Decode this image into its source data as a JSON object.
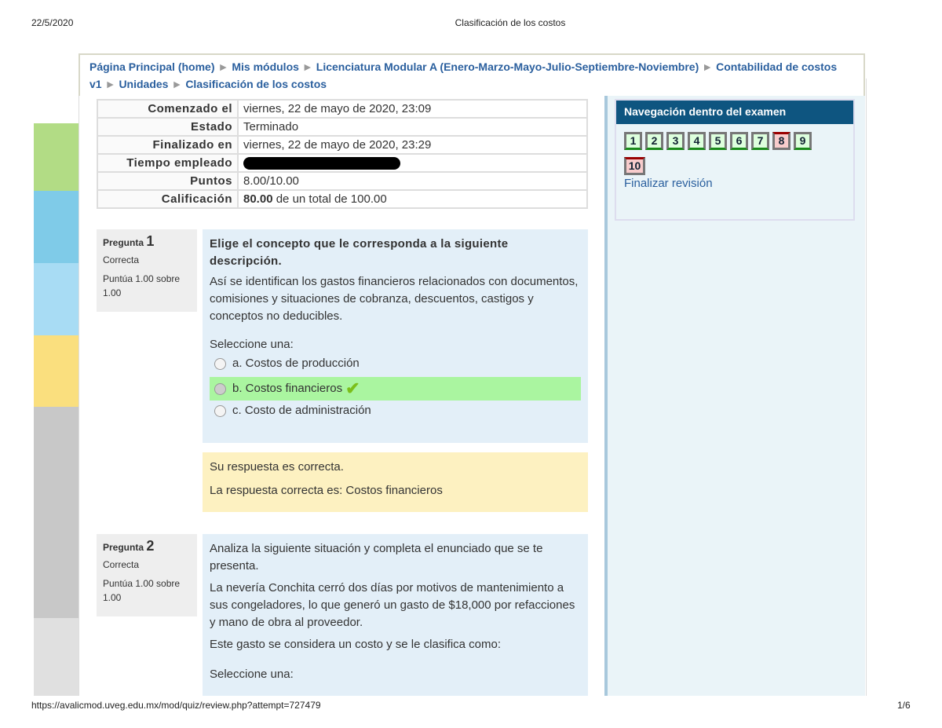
{
  "print_header": {
    "date": "22/5/2020",
    "title": "Clasificación de los costos"
  },
  "breadcrumb": [
    "Página Principal (home)",
    "Mis módulos",
    "Licenciatura Modular A (Enero-Marzo-Mayo-Julio-Septiembre-Noviembre)",
    "Contabilidad de costos v1",
    "Unidades",
    "Clasificación de los costos"
  ],
  "summary": [
    {
      "k": "Comenzado el",
      "v": "viernes, 22 de mayo de 2020, 23:09"
    },
    {
      "k": "Estado",
      "v": "Terminado"
    },
    {
      "k": "Finalizado en",
      "v": "viernes, 22 de mayo de 2020, 23:29"
    },
    {
      "k": "Tiempo empleado",
      "v": ""
    },
    {
      "k": "Puntos",
      "v": "8.00/10.00"
    },
    {
      "k": "Calificación",
      "v_bold": "80.00",
      "v": "de un total de 100.00"
    }
  ],
  "nav": {
    "title": "Navegación dentro del examen",
    "finish": "Finalizar revisión",
    "buttons": [
      {
        "n": "1",
        "correct": true
      },
      {
        "n": "2",
        "correct": true
      },
      {
        "n": "3",
        "correct": true
      },
      {
        "n": "4",
        "correct": true
      },
      {
        "n": "5",
        "correct": true
      },
      {
        "n": "6",
        "correct": true
      },
      {
        "n": "7",
        "correct": true
      },
      {
        "n": "8",
        "correct": false
      },
      {
        "n": "9",
        "correct": true
      },
      {
        "n": "10",
        "correct": false
      }
    ]
  },
  "q1": {
    "label": "Pregunta",
    "num": "1",
    "state": "Correcta",
    "score": "Puntúa 1.00 sobre 1.00",
    "title": "Elige el concepto que le corresponda a la siguiente descripción.",
    "text": "Así se identifican los gastos financieros relacionados con documentos, comisiones y situaciones de cobranza, descuentos, castigos y conceptos no deducibles.",
    "prompt": "Seleccione una:",
    "options": [
      "a. Costos de producción",
      "b. Costos financieros",
      "c. Costo de administración"
    ],
    "feedback1": "Su respuesta es correcta.",
    "feedback2": "La respuesta correcta es: Costos financieros"
  },
  "q2": {
    "label": "Pregunta",
    "num": "2",
    "state": "Correcta",
    "score": "Puntúa 1.00 sobre 1.00",
    "text1": "Analiza la siguiente situación y completa el enunciado que se te presenta.",
    "text2": "La nevería Conchita cerró dos días por motivos de mantenimiento a sus congeladores, lo que generó un gasto de $18,000 por refacciones y mano de obra al proveedor.",
    "text3": "Este gasto se considera un costo y se le clasifica como:",
    "prompt": "Seleccione una:"
  },
  "footer": {
    "url": "https://avalicmod.uveg.edu.mx/mod/quiz/review.php?attempt=727479",
    "page": "1/6"
  }
}
